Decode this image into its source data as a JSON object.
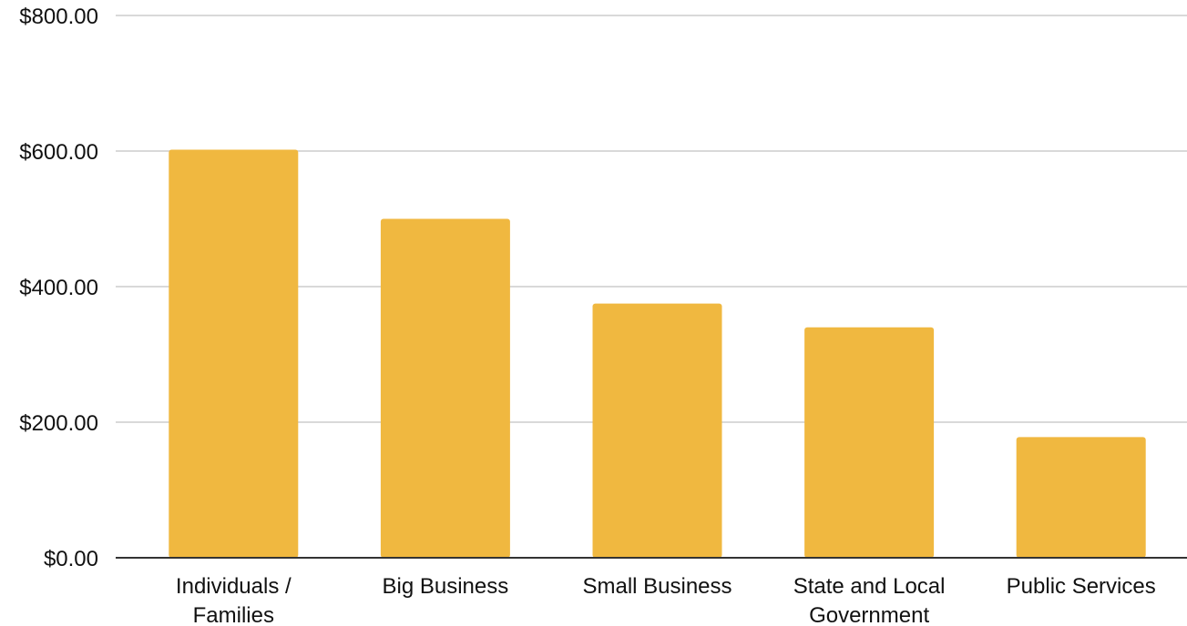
{
  "chart_data": {
    "type": "bar",
    "title": "",
    "xlabel": "",
    "ylabel": "",
    "categories": [
      [
        "Individuals /",
        "Families"
      ],
      [
        "Big Business"
      ],
      [
        "Small Business"
      ],
      [
        "State and Local",
        "Government"
      ],
      [
        "Public Services"
      ]
    ],
    "values": [
      602,
      500,
      375,
      340,
      178
    ],
    "ylim": [
      0,
      800
    ],
    "yticks": [
      {
        "value": 0,
        "label": "$0.00"
      },
      {
        "value": 200,
        "label": "$200.00"
      },
      {
        "value": 400,
        "label": "$400.00"
      },
      {
        "value": 600,
        "label": "$600.00"
      },
      {
        "value": 800,
        "label": "$800.00"
      }
    ],
    "grid": true,
    "legend": "none",
    "bar_color": "#f0b840",
    "grid_color": "#d9d9d9",
    "axis_color": "#333333"
  }
}
